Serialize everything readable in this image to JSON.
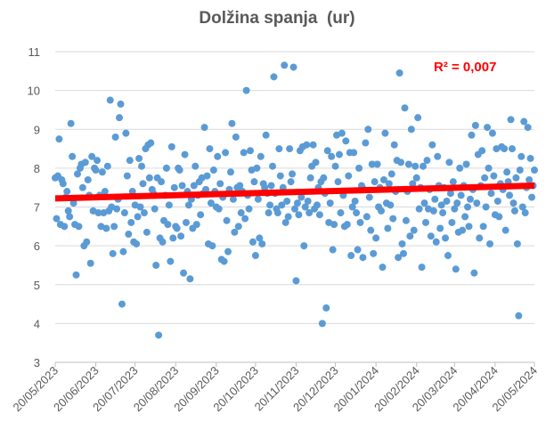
{
  "chart_data": {
    "type": "scatter",
    "title": "Dolžina spanja  (ur)",
    "xlabel": "",
    "ylabel": "",
    "ylim": [
      3,
      11
    ],
    "yticks": [
      "3",
      "4",
      "5",
      "6",
      "7",
      "8",
      "9",
      "10",
      "11"
    ],
    "xlim": [
      "2023-05-20",
      "2024-05-20"
    ],
    "xticks": [
      "20/05/2023",
      "20/06/2023",
      "20/07/2023",
      "20/08/2023",
      "20/09/2023",
      "20/10/2023",
      "20/11/2023",
      "20/12/2023",
      "20/01/2024",
      "20/02/2024",
      "20/03/2024",
      "20/04/2024",
      "20/05/2024"
    ],
    "grid": true,
    "legend": "none",
    "colors": {
      "points": "#5b9bd5",
      "trendline": "#ff0000",
      "grid": "#d9d9d9",
      "text": "#595959"
    },
    "trendline": {
      "type": "linear",
      "start_value": 7.22,
      "end_value": 7.55,
      "label": "R² = 0,007",
      "r_squared": 0.007
    },
    "points_by_month": [
      {
        "month": "2023-05",
        "first_day": 20,
        "values": [
          7.75,
          6.7,
          7.8,
          8.75,
          6.55,
          7.7,
          7.6,
          6.5,
          7.25,
          7.4,
          6.9,
          6.75
        ]
      },
      {
        "month": "2023-06",
        "first_day": 1,
        "values": [
          9.15,
          8.3,
          7.1,
          6.55,
          5.25,
          7.85,
          6.5,
          8.0,
          8.1,
          7.5,
          6.0,
          8.15,
          6.1,
          7.7,
          7.3,
          5.55,
          8.3,
          6.9,
          8.0,
          7.95,
          8.2,
          6.85,
          7.3,
          6.5,
          7.9,
          6.85,
          7.4,
          6.45,
          8.05,
          6.9
        ]
      },
      {
        "month": "2023-07",
        "first_day": 1,
        "values": [
          9.75,
          7.0,
          5.8,
          6.5,
          8.8,
          6.95,
          7.2,
          9.3,
          9.65,
          4.5,
          5.85,
          6.85,
          8.9,
          7.8,
          6.3,
          8.2,
          6.6,
          7.4,
          6.1,
          7.05,
          6.05,
          6.75,
          8.25,
          7.0,
          8.05,
          7.6,
          6.85,
          8.5,
          6.35,
          8.6,
          7.75
        ]
      },
      {
        "month": "2023-08",
        "first_day": 1,
        "values": [
          8.65,
          7.45,
          7.35,
          6.95,
          5.5,
          7.75,
          3.7,
          6.2,
          7.65,
          6.1,
          6.65,
          7.3,
          8.0,
          6.55,
          7.05,
          5.6,
          8.55,
          6.2,
          7.5,
          6.5,
          6.45,
          8.0,
          7.95,
          6.25,
          7.55,
          5.3,
          8.35,
          6.6,
          7.4,
          7.05,
          5.15
        ]
      },
      {
        "month": "2023-09",
        "first_day": 1,
        "values": [
          7.2,
          6.45,
          7.55,
          8.05,
          6.55,
          7.3,
          7.65,
          6.8,
          7.75,
          7.35,
          9.05,
          7.45,
          7.8,
          6.05,
          8.5,
          7.1,
          6.0,
          7.95,
          7.4,
          7.0,
          8.3,
          6.95,
          7.6,
          5.65,
          7.25,
          5.6,
          8.4,
          6.65,
          5.85,
          7.45
        ]
      },
      {
        "month": "2023-10",
        "first_day": 1,
        "values": [
          7.9,
          9.15,
          7.2,
          6.35,
          8.8,
          7.5,
          6.5,
          7.55,
          6.85,
          7.4,
          8.4,
          6.7,
          10.0,
          7.3,
          6.95,
          8.45,
          7.95,
          6.1,
          7.65,
          5.75,
          8.0,
          7.2,
          6.2,
          8.3,
          6.05,
          7.6,
          7.5,
          8.85,
          7.35,
          6.85,
          7.05
        ]
      },
      {
        "month": "2023-11",
        "first_day": 1,
        "values": [
          7.55,
          8.05,
          10.35,
          7.35,
          6.95,
          6.85,
          8.5,
          7.8,
          7.05,
          7.5,
          10.65,
          6.6,
          7.15,
          6.75,
          8.5,
          7.65,
          7.85,
          10.6,
          6.95,
          5.1,
          7.1,
          6.8,
          8.45,
          7.25,
          8.55,
          6.0,
          7.0,
          8.6,
          7.15,
          6.85
        ]
      },
      {
        "month": "2023-12",
        "first_day": 1,
        "values": [
          7.75,
          8.05,
          8.6,
          6.95,
          8.15,
          7.05,
          7.5,
          6.8,
          7.65,
          4.0,
          7.75,
          7.35,
          4.4,
          8.45,
          6.6,
          7.1,
          8.3,
          5.9,
          6.55,
          8.05,
          8.85,
          7.65,
          8.35,
          6.85,
          8.9,
          7.3,
          6.5,
          8.7,
          6.55,
          7.8,
          8.4
        ]
      },
      {
        "month": "2024-01",
        "first_day": 1,
        "values": [
          5.75,
          7.0,
          8.4,
          7.15,
          6.85,
          5.9,
          8.0,
          6.6,
          7.55,
          5.7,
          7.45,
          8.65,
          6.75,
          9.0,
          7.25,
          6.4,
          8.1,
          5.8,
          7.65,
          6.2,
          8.1,
          7.0,
          7.5,
          6.9,
          5.45,
          7.7,
          8.9,
          7.1,
          6.45,
          7.6,
          7.05
        ]
      },
      {
        "month": "2024-02",
        "first_day": 1,
        "values": [
          7.85,
          6.7,
          8.6,
          7.4,
          8.2,
          5.7,
          10.45,
          8.15,
          6.05,
          5.8,
          9.55,
          6.65,
          7.4,
          8.1,
          6.25,
          9.0,
          7.6,
          6.4,
          8.05,
          7.75,
          9.3,
          6.95,
          7.5,
          5.45,
          8.05,
          7.1,
          6.6,
          8.2,
          6.95
        ]
      },
      {
        "month": "2024-03",
        "first_day": 1,
        "values": [
          7.45,
          6.25,
          8.6,
          6.9,
          7.2,
          6.1,
          8.3,
          7.55,
          6.45,
          7.05,
          6.85,
          7.5,
          6.2,
          7.15,
          5.75,
          8.15,
          7.35,
          6.6,
          7.65,
          6.95,
          5.4,
          7.1,
          6.35,
          8.0,
          7.3,
          6.4,
          7.55,
          6.75,
          8.1,
          7.0,
          6.5
        ]
      },
      {
        "month": "2024-04",
        "first_day": 1,
        "values": [
          7.2,
          8.85,
          7.45,
          5.3,
          9.1,
          7.1,
          8.35,
          6.2,
          7.55,
          8.45,
          6.5,
          7.75,
          7.0,
          9.05,
          8.0,
          6.05,
          7.35,
          8.9,
          7.8,
          6.8,
          8.5,
          7.15,
          6.75,
          7.6,
          8.55,
          7.45,
          8.5,
          6.4,
          7.9,
          7.65
        ]
      },
      {
        "month": "2024-05",
        "first_day": 1,
        "values": [
          7.3,
          9.25,
          8.5,
          7.1,
          6.9,
          7.75,
          6.05,
          4.2,
          7.95,
          8.3,
          7.0,
          9.2,
          6.85,
          7.5,
          9.05,
          7.7,
          8.25,
          7.25,
          7.55,
          7.95
        ]
      }
    ]
  }
}
